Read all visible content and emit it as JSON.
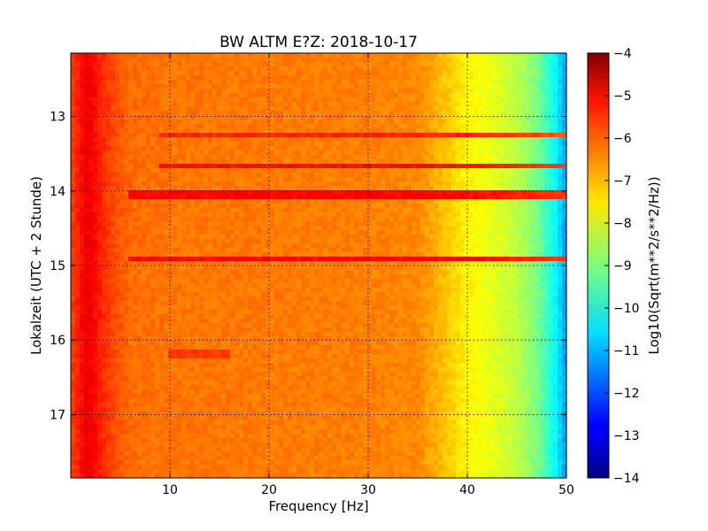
{
  "chart_data": {
    "type": "heatmap",
    "title": "BW ALTM E?Z: 2018-10-17",
    "xlabel": "Frequency [Hz]",
    "ylabel": "Lokalzeit (UTC + 2 Stunde)",
    "xlim": [
      0,
      50
    ],
    "ylim": [
      12.15,
      17.85
    ],
    "y_inverted": true,
    "x_ticks": [
      10,
      20,
      30,
      40,
      50
    ],
    "y_ticks": [
      13,
      14,
      15,
      16,
      17
    ],
    "grid": true,
    "colorbar": {
      "label": "Log10(Sqrt(m**2/s**2/Hz))",
      "range": [
        -14,
        -4
      ],
      "ticks": [
        -4,
        -5,
        -6,
        -7,
        -8,
        -9,
        -10,
        -11,
        -12,
        -13,
        -14
      ],
      "colormap": "jet"
    },
    "background_level": {
      "frequency_hz": [
        0,
        0.8,
        1.5,
        2.2,
        3.0,
        4.5,
        6,
        10,
        20,
        30,
        35,
        38,
        40,
        42,
        45,
        47,
        49,
        50
      ],
      "log10_amplitude": [
        -5.9,
        -5.5,
        -5.1,
        -5.2,
        -5.6,
        -6.0,
        -6.3,
        -6.4,
        -6.45,
        -6.5,
        -6.6,
        -7.2,
        -7.65,
        -7.9,
        -8.4,
        -9.0,
        -10.3,
        -11.3
      ]
    },
    "bands": [
      {
        "time": 13.25,
        "f_start": 9,
        "f_end": 50,
        "log10_amplitude": -5.6
      },
      {
        "time": 13.65,
        "f_start": 9,
        "f_end": 50,
        "log10_amplitude": -5.4
      },
      {
        "time": 14.05,
        "f_start": 6,
        "f_end": 50,
        "log10_amplitude": -5.3
      },
      {
        "time": 14.93,
        "f_start": 6,
        "f_end": 50,
        "log10_amplitude": -5.3
      },
      {
        "time": 16.18,
        "f_start": 10,
        "f_end": 16,
        "log10_amplitude": -5.8
      }
    ]
  }
}
